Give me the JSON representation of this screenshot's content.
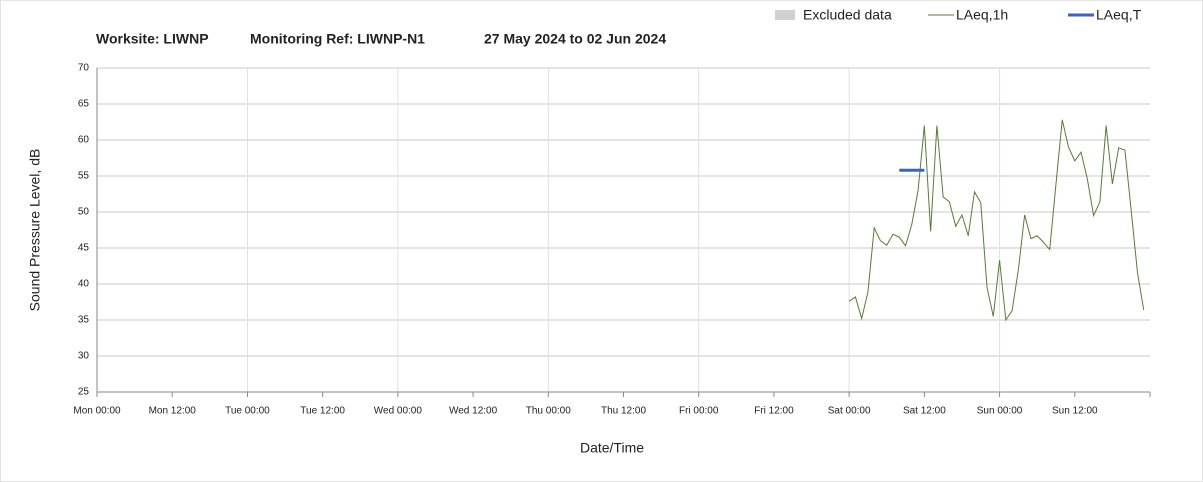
{
  "chart_data": {
    "type": "line",
    "title_parts": [
      "Worksite: LIWNP",
      "Monitoring Ref: LIWNP-N1",
      "27 May 2024 to 02 Jun 2024"
    ],
    "xlabel": "Date/Time",
    "ylabel": "Sound Pressure Level, dB",
    "xlim": [
      0,
      168
    ],
    "ylim": [
      25,
      70
    ],
    "xticks": [
      {
        "value": 0,
        "label": "Mon 00:00"
      },
      {
        "value": 12,
        "label": "Mon 12:00"
      },
      {
        "value": 24,
        "label": "Tue 00:00"
      },
      {
        "value": 36,
        "label": "Tue 12:00"
      },
      {
        "value": 48,
        "label": "Wed 00:00"
      },
      {
        "value": 60,
        "label": "Wed 12:00"
      },
      {
        "value": 72,
        "label": "Thu 00:00"
      },
      {
        "value": 84,
        "label": "Thu 12:00"
      },
      {
        "value": 96,
        "label": "Fri 00:00"
      },
      {
        "value": 108,
        "label": "Fri 12:00"
      },
      {
        "value": 120,
        "label": "Sat 00:00"
      },
      {
        "value": 132,
        "label": "Sat 12:00"
      },
      {
        "value": 144,
        "label": "Sun 00:00"
      },
      {
        "value": 156,
        "label": "Sun 12:00"
      }
    ],
    "yticks": [
      25,
      30,
      35,
      40,
      45,
      50,
      55,
      60,
      65,
      70
    ],
    "grid": true,
    "series": [
      {
        "name": "Excluded data",
        "color": "#d0d0d0",
        "kind": "area",
        "x": [],
        "values": []
      },
      {
        "name": "LAeq,1h",
        "color": "#5a7a3a",
        "kind": "line",
        "x": [
          120,
          121,
          122,
          123,
          124,
          125,
          126,
          127,
          128,
          129,
          130,
          131,
          132,
          133,
          134,
          135,
          136,
          137,
          138,
          139,
          140,
          141,
          142,
          143,
          144,
          145,
          146,
          147,
          148,
          149,
          150,
          151,
          152,
          153,
          154,
          155,
          156,
          157,
          158,
          159,
          160,
          161,
          162,
          163,
          164,
          165,
          166,
          167
        ],
        "values": [
          37.6,
          38.2,
          35.2,
          38.9,
          47.8,
          46,
          45.4,
          46.9,
          46.5,
          45.3,
          48.3,
          53,
          62,
          47.3,
          62,
          52.1,
          51.4,
          48,
          49.6,
          46.7,
          52.8,
          51.3,
          39.5,
          35.5,
          43.3,
          35,
          36.3,
          42,
          49.6,
          46.3,
          46.7,
          45.8,
          44.8,
          53.9,
          62.8,
          59,
          57.1,
          58.3,
          54.6,
          49.5,
          51.4,
          62,
          53.9,
          58.9,
          58.6,
          50.2,
          41.6,
          36.4
        ]
      },
      {
        "name": "LAeq,T",
        "color": "#3a66b5",
        "kind": "line",
        "width": 3,
        "x": [
          128,
          132
        ],
        "values": [
          55.8,
          55.8
        ]
      }
    ]
  }
}
